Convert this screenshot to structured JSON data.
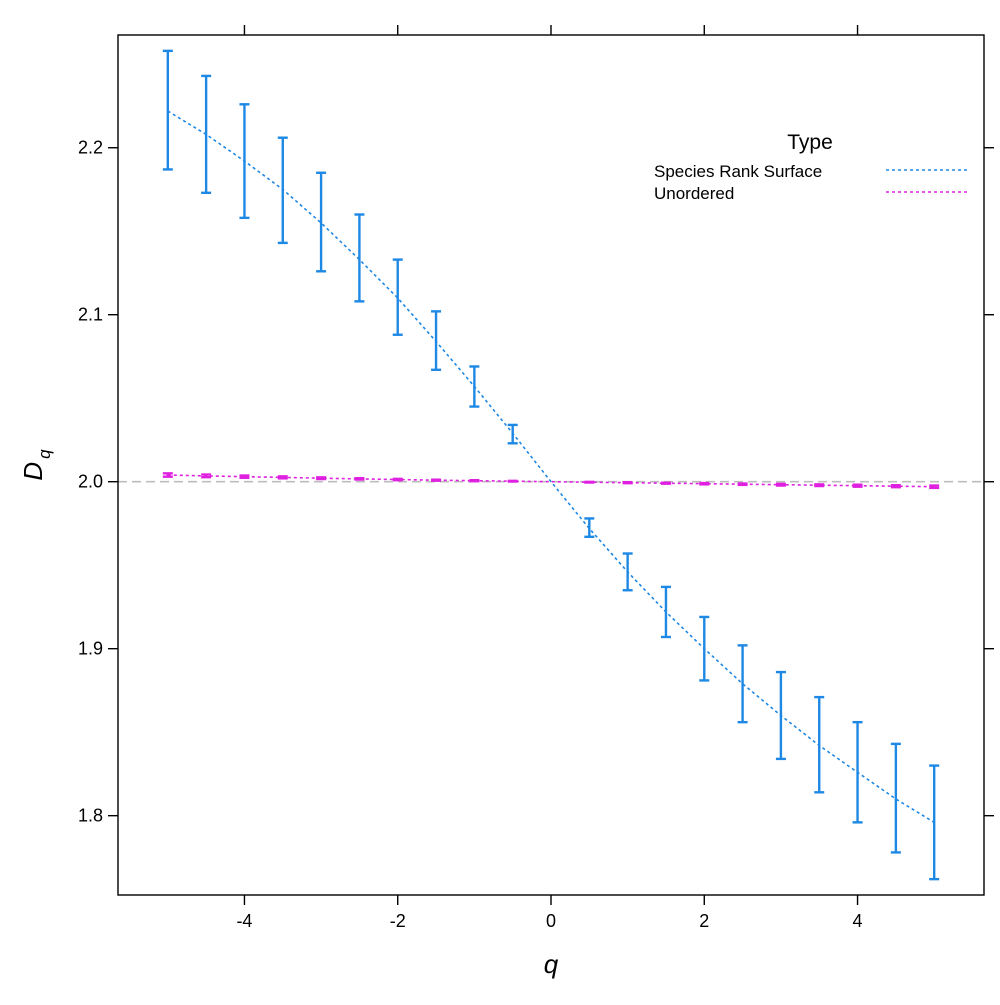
{
  "chart_data": {
    "type": "line",
    "xlabel": "q",
    "ylabel": "D",
    "ylabel_subscript": "q",
    "xlim": [
      -5.65,
      5.65
    ],
    "ylim": [
      1.7525,
      2.2675
    ],
    "x_ticks": [
      -4,
      -2,
      0,
      2,
      4
    ],
    "x_tick_labels": [
      "-4",
      "-2",
      "0",
      "2",
      "4"
    ],
    "y_ticks": [
      1.8,
      1.9,
      2.0,
      2.1,
      2.2
    ],
    "y_tick_labels": [
      "1.8",
      "1.9",
      "2.0",
      "2.1",
      "2.2"
    ],
    "reference_line": {
      "y": 2.0,
      "color": "#bdbdbd"
    },
    "legend": {
      "title": "Type",
      "placement": "top-right",
      "entries": [
        "Species Rank Surface",
        "Unordered"
      ]
    },
    "series": [
      {
        "name": "Species Rank Surface",
        "color": "#1e88e5",
        "x": [
          -5,
          -4.5,
          -4,
          -3.5,
          -3,
          -2.5,
          -2,
          -1.5,
          -1,
          -0.5,
          0,
          0.5,
          1,
          1.5,
          2,
          2.5,
          3,
          3.5,
          4,
          4.5,
          5
        ],
        "y": [
          2.222,
          2.208,
          2.192,
          2.175,
          2.155,
          2.133,
          2.11,
          2.084,
          2.057,
          2.029,
          2.0,
          1.972,
          1.946,
          1.922,
          1.9,
          1.879,
          1.86,
          1.842,
          1.826,
          1.81,
          1.796
        ],
        "error_low": [
          2.187,
          2.173,
          2.158,
          2.143,
          2.126,
          2.108,
          2.088,
          2.067,
          2.045,
          2.023,
          null,
          1.967,
          1.935,
          1.907,
          1.881,
          1.856,
          1.834,
          1.814,
          1.796,
          1.778,
          1.762
        ],
        "error_high": [
          2.258,
          2.243,
          2.226,
          2.206,
          2.185,
          2.16,
          2.133,
          2.102,
          2.069,
          2.034,
          null,
          1.978,
          1.957,
          1.937,
          1.919,
          1.902,
          1.886,
          1.871,
          1.856,
          1.843,
          1.83
        ]
      },
      {
        "name": "Unordered",
        "color": "#e020e0",
        "x": [
          -5,
          -4.5,
          -4,
          -3.5,
          -3,
          -2.5,
          -2,
          -1.5,
          -1,
          -0.5,
          0,
          0.5,
          1,
          1.5,
          2,
          2.5,
          3,
          3.5,
          4,
          4.5,
          5
        ],
        "y": [
          2.004,
          2.0035,
          2.003,
          2.0026,
          2.0021,
          2.0017,
          2.0013,
          2.0009,
          2.0006,
          2.0003,
          2.0,
          1.9997,
          1.9994,
          1.9991,
          1.9988,
          1.9985,
          1.9982,
          1.9979,
          1.9976,
          1.9973,
          1.997
        ],
        "error_low": [
          2.003,
          2.0027,
          2.0023,
          2.002,
          2.0016,
          2.0013,
          2.0009,
          2.0006,
          2.0003,
          2.0001,
          null,
          1.9995,
          1.9991,
          1.9988,
          1.9984,
          1.9981,
          1.9977,
          1.9974,
          1.997,
          1.9967,
          1.9963
        ],
        "error_high": [
          2.005,
          2.0043,
          2.0037,
          2.0032,
          2.0026,
          2.0021,
          2.0017,
          2.0012,
          2.0009,
          2.0005,
          null,
          1.9999,
          1.9997,
          1.9994,
          1.9992,
          1.9989,
          1.9987,
          1.9984,
          1.9982,
          1.9979,
          1.9977
        ]
      }
    ]
  }
}
